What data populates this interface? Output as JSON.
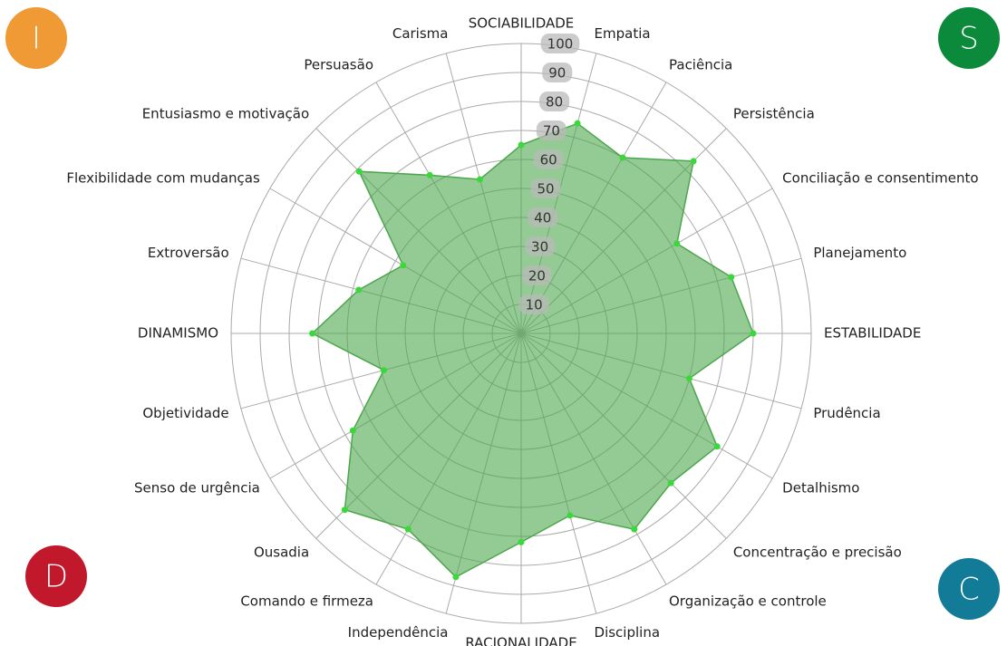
{
  "chart_data": {
    "type": "radar",
    "categories": [
      "SOCIABILIDADE",
      "Empatia",
      "Paciência",
      "Persistência",
      "Conciliação e consentimento",
      "Planejamento",
      "ESTABILIDADE",
      "Prudência",
      "Detalhismo",
      "Concentração e precisão",
      "Organização e controle",
      "Disciplina",
      "RACIONALIDADE",
      "Independência",
      "Comando e firmeza",
      "Ousadia",
      "Senso de urgência",
      "Objetividade",
      "DINAMISMO",
      "Extroversão",
      "Flexibilidade com mudanças",
      "Entusiasmo e motivação",
      "Persuasão",
      "Carisma"
    ],
    "values": [
      65,
      75,
      70,
      84,
      62,
      75,
      80,
      60,
      78,
      73,
      78,
      65,
      72,
      87,
      78,
      86,
      67,
      49,
      72,
      58,
      47,
      79,
      63,
      55
    ],
    "color": "#4ca64c",
    "rlim": [
      0,
      100
    ],
    "rticks": [
      10,
      20,
      30,
      40,
      50,
      60,
      70,
      80,
      90,
      100
    ],
    "grid": true
  },
  "badges": [
    {
      "letter": "I",
      "color": "#ef9a35"
    },
    {
      "letter": "S",
      "color": "#0b8a3b"
    },
    {
      "letter": "D",
      "color": "#c2182b"
    },
    {
      "letter": "C",
      "color": "#127b98"
    }
  ]
}
